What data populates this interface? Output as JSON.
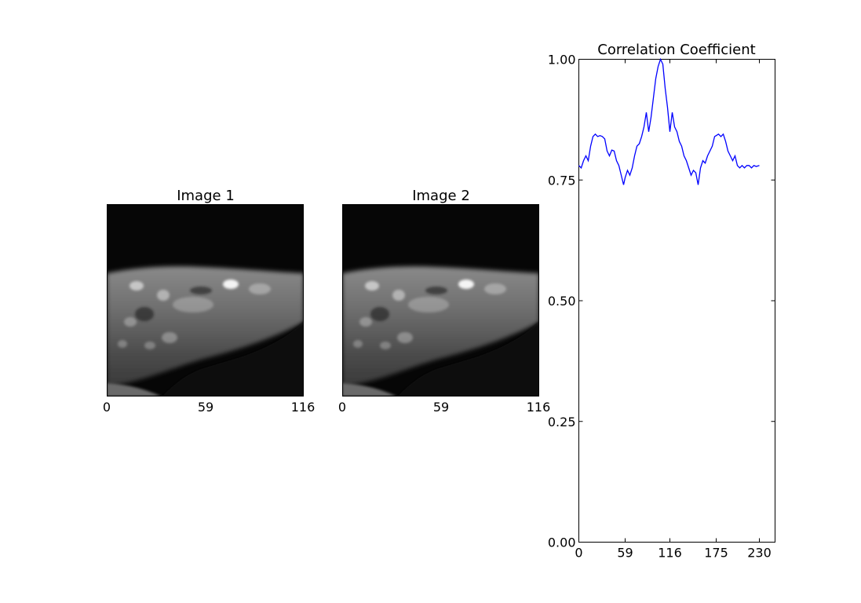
{
  "panels": [
    {
      "title": "Image 1",
      "xticks": [
        "0",
        "59",
        "116"
      ]
    },
    {
      "title": "Image 2",
      "xticks": [
        "0",
        "59",
        "116"
      ]
    }
  ],
  "chart_data": {
    "type": "line",
    "title": "Correlation Coefficient",
    "xlabel": "",
    "ylabel": "",
    "xlim": [
      0,
      250
    ],
    "ylim": [
      0,
      1
    ],
    "xticks": [
      0,
      59,
      116,
      175,
      230
    ],
    "yticks": [
      0.0,
      0.25,
      0.5,
      0.75,
      1.0
    ],
    "ytick_labels": [
      "0.00",
      "0.25",
      "0.50",
      "0.75",
      "1.00"
    ],
    "grid": false,
    "series": [
      {
        "color": "#0000ff",
        "x": [
          0,
          3,
          6,
          9,
          12,
          15,
          18,
          21,
          24,
          27,
          30,
          33,
          36,
          39,
          42,
          45,
          48,
          51,
          54,
          57,
          59,
          62,
          65,
          68,
          71,
          74,
          77,
          80,
          83,
          86,
          89,
          92,
          95,
          98,
          101,
          104,
          107,
          110,
          113,
          116,
          119,
          122,
          125,
          128,
          131,
          134,
          137,
          140,
          143,
          146,
          149,
          152,
          155,
          158,
          161,
          164,
          167,
          170,
          173,
          175,
          178,
          181,
          184,
          187,
          190,
          193,
          196,
          199,
          202,
          205,
          208,
          211,
          214,
          217,
          220,
          223,
          226,
          230
        ],
        "y": [
          0.78,
          0.775,
          0.79,
          0.8,
          0.79,
          0.82,
          0.84,
          0.845,
          0.84,
          0.842,
          0.84,
          0.835,
          0.81,
          0.8,
          0.812,
          0.81,
          0.79,
          0.78,
          0.76,
          0.74,
          0.755,
          0.77,
          0.76,
          0.775,
          0.8,
          0.82,
          0.825,
          0.84,
          0.86,
          0.89,
          0.85,
          0.88,
          0.92,
          0.96,
          0.985,
          1.0,
          0.99,
          0.94,
          0.9,
          0.85,
          0.89,
          0.86,
          0.85,
          0.83,
          0.82,
          0.8,
          0.79,
          0.775,
          0.76,
          0.77,
          0.765,
          0.74,
          0.775,
          0.79,
          0.785,
          0.8,
          0.81,
          0.82,
          0.84,
          0.842,
          0.845,
          0.84,
          0.845,
          0.83,
          0.81,
          0.8,
          0.79,
          0.8,
          0.78,
          0.775,
          0.78,
          0.775,
          0.78,
          0.78,
          0.775,
          0.78,
          0.778,
          0.78
        ]
      }
    ]
  }
}
